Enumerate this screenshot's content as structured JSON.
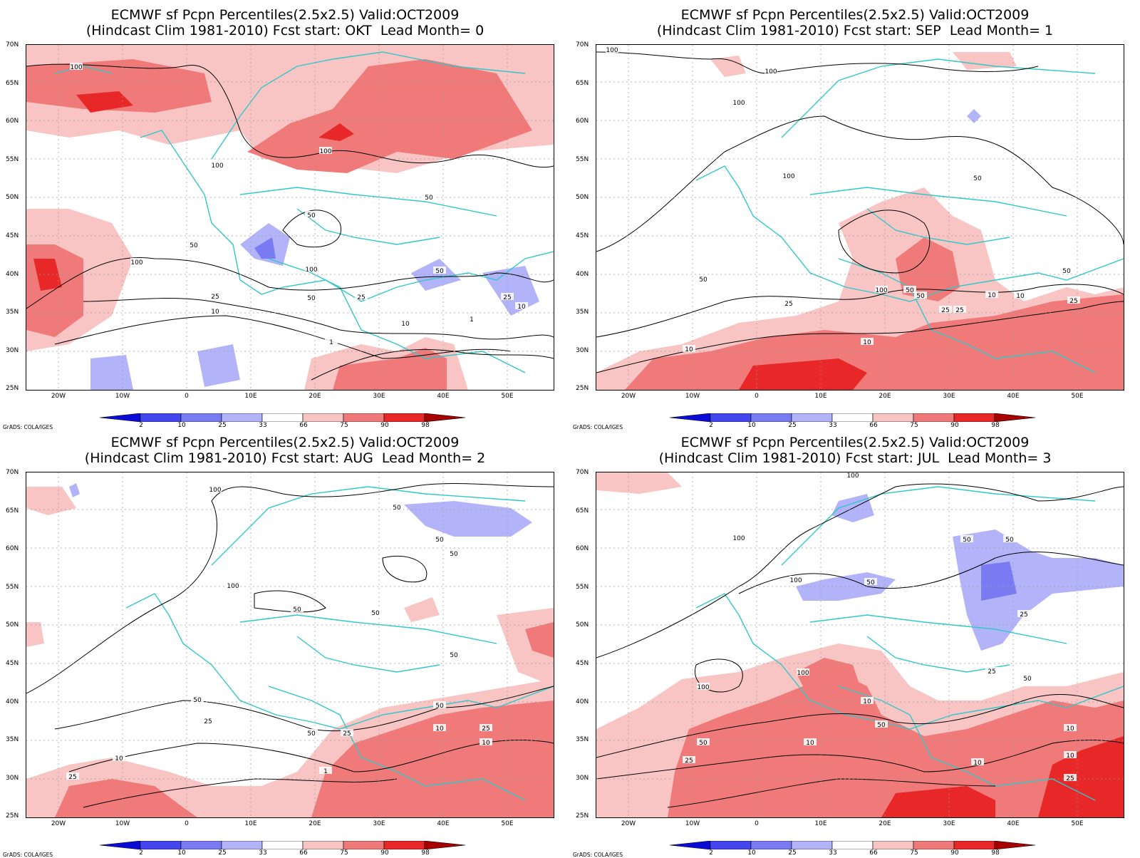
{
  "panels": [
    {
      "line1": "ECMWF sf Pcpn Percentiles(2.5x2.5) Valid:OCT2009",
      "line2": "(Hindcast Clim 1981-2010) Fcst start: OKT  Lead Month= 0"
    },
    {
      "line1": "ECMWF sf Pcpn Percentiles(2.5x2.5) Valid:OCT2009",
      "line2": "(Hindcast Clim 1981-2010) Fcst start: SEP  Lead Month= 1"
    },
    {
      "line1": "ECMWF sf Pcpn Percentiles(2.5x2.5) Valid:OCT2009",
      "line2": "(Hindcast Clim 1981-2010) Fcst start: AUG  Lead Month= 2"
    },
    {
      "line1": "ECMWF sf Pcpn Percentiles(2.5x2.5) Valid:OCT2009",
      "line2": "(Hindcast Clim 1981-2010) Fcst start: JUL  Lead Month= 3"
    }
  ],
  "lat_labels": [
    "70N",
    "65N",
    "60N",
    "55N",
    "50N",
    "45N",
    "40N",
    "35N",
    "30N",
    "25N"
  ],
  "lon_labels": [
    "20W",
    "10W",
    "0",
    "10E",
    "20E",
    "30E",
    "40E",
    "50E"
  ],
  "colorbar": {
    "labels": [
      "2",
      "10",
      "25",
      "33",
      "66",
      "75",
      "90",
      "98"
    ],
    "colors": [
      "#0b0bd6",
      "#4545ee",
      "#7a7af3",
      "#b3b3f9",
      "#ffffff",
      "#f8c4c4",
      "#f07a7a",
      "#e82828",
      "#a80000"
    ]
  },
  "credit": "GrADS: COLA/IGES",
  "contour_labels": {
    "p0": [
      "100",
      "100",
      "100",
      "50",
      "50",
      "100",
      "50",
      "25",
      "50",
      "25",
      "10",
      "1",
      "25",
      "10",
      "100",
      "1",
      "50",
      "10"
    ],
    "p1": [
      "100",
      "100",
      "100",
      "100",
      "50",
      "50",
      "100",
      "50",
      "50",
      "25",
      "25",
      "10",
      "10",
      "25",
      "10",
      "50",
      "10",
      "25"
    ],
    "p2": [
      "100",
      "100",
      "50",
      "50",
      "50",
      "50",
      "50",
      "50",
      "25",
      "50",
      "25",
      "10",
      "25",
      "1",
      "50",
      "10",
      "25",
      "10",
      "50"
    ],
    "p3": [
      "100",
      "100",
      "100",
      "50",
      "50",
      "50",
      "25",
      "25",
      "50",
      "100",
      "100",
      "10",
      "50",
      "10",
      "10",
      "50",
      "25",
      "10",
      "25",
      "10"
    ]
  },
  "legend_colors": {
    "coast": "#30c8c8",
    "contour": "#000000"
  }
}
